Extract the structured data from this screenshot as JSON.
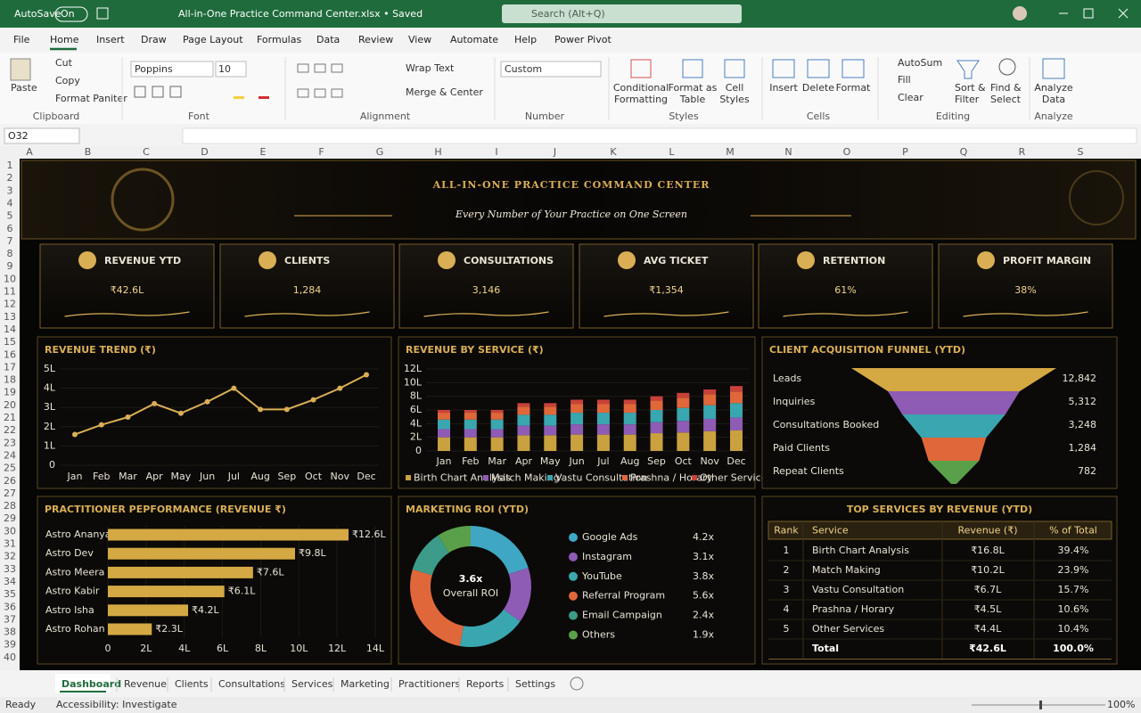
{
  "window": {
    "autosave": "AutoSave",
    "toggle": "On",
    "filename": "All-in-One Practice Command Center.xlsx • Saved",
    "search": "Search (Alt+Q)"
  },
  "menu": [
    "File",
    "Home",
    "Insert",
    "Draw",
    "Page Layout",
    "Formulas",
    "Data",
    "Review",
    "View",
    "Automate",
    "Help",
    "Power Pivot"
  ],
  "ribbon": {
    "clipboard": {
      "paste": "Paste",
      "cut": "Cut",
      "copy": "Copy",
      "painter": "Format Paniter",
      "label": "Clipboard"
    },
    "font": {
      "name": "Poppins",
      "size": "10",
      "label": "Font"
    },
    "alignment": {
      "wrap": "Wrap Text",
      "merge": "Merge & Center",
      "label": "Alignment"
    },
    "number": {
      "format": "Custom",
      "label": "Number"
    },
    "styles": {
      "conditional": [
        "Conditional",
        "Formatting"
      ],
      "table": [
        "Format as",
        "Table"
      ],
      "cell": [
        "Cell",
        "Styles"
      ],
      "label": "Styles"
    },
    "cells": {
      "insert": "Insert",
      "delete": "Delete",
      "format": "Format",
      "label": "Cells"
    },
    "editing": {
      "autosum": "AutoSum",
      "fill": "Fill",
      "clear": "Clear",
      "sort": [
        "Sort &",
        "Filter"
      ],
      "find": [
        "Find &",
        "Select"
      ],
      "label": "Editing"
    },
    "analyze": {
      "data": [
        "Analyze",
        "Data"
      ],
      "label": "Analyze"
    }
  },
  "name_box": "O32",
  "columns": [
    "A",
    "B",
    "C",
    "D",
    "E",
    "F",
    "G",
    "H",
    "I",
    "J",
    "K",
    "L",
    "M",
    "N",
    "O",
    "P",
    "Q",
    "R",
    "S"
  ],
  "rows": [
    "1",
    "2",
    "3",
    "4",
    "5",
    "6",
    "7",
    "8",
    "9",
    "10",
    "11",
    "12",
    "13",
    "14",
    "15",
    "16",
    "17",
    "18",
    "19",
    "20",
    "21",
    "22",
    "23",
    "24",
    "25",
    "26",
    "27",
    "28",
    "29",
    "30",
    "31",
    "32",
    "33",
    "34",
    "35",
    "36",
    "37",
    "38",
    "39",
    "40"
  ],
  "dashboard": {
    "title": "ALL-IN-ONE PRACTICE COMMAND CENTER",
    "subtitle": "Every Number of Your Practice on One Screen",
    "kpis": [
      {
        "label": "REVENUE YTD",
        "value": "₹42.6L"
      },
      {
        "label": "CLIENTS",
        "value": "1,284"
      },
      {
        "label": "CONSULTATIONS",
        "value": "3,146"
      },
      {
        "label": "AVG TICKET",
        "value": "₹1,354"
      },
      {
        "label": "RETENTION",
        "value": "61%"
      },
      {
        "label": "PROFIT MARGIN",
        "value": "38%"
      }
    ],
    "revenue_trend": {
      "type": "line",
      "title": "REVENUE TREND (₹)",
      "color": "#d9ae55",
      "categories": [
        "Jan",
        "Feb",
        "Mar",
        "Apr",
        "May",
        "Jun",
        "Jul",
        "Aug",
        "Sep",
        "Oct",
        "Nov",
        "Dec"
      ],
      "values": [
        1.6,
        2.1,
        2.5,
        3.2,
        2.7,
        3.3,
        4.0,
        2.9,
        2.9,
        3.4,
        4.0,
        4.7
      ],
      "ylim": [
        0,
        5.2
      ],
      "yticks": [
        0,
        {
          "value": 1,
          "label": "1L"
        },
        {
          "value": 2,
          "label": "2L"
        },
        {
          "value": 3,
          "label": "3L"
        },
        {
          "value": 4,
          "label": "4L"
        },
        {
          "value": 5,
          "label": "5L"
        }
      ]
    },
    "revenue_by_service": {
      "type": "stacked_bar",
      "title": "REVENUE BY SERVICE (₹)",
      "categories": [
        "Jan",
        "Feb",
        "Mar",
        "Apr",
        "May",
        "Jun",
        "Jul",
        "Aug",
        "Sep",
        "Oct",
        "Nov",
        "Dec"
      ],
      "series": [
        {
          "name": "Birth Chart Analysis",
          "color": "#c9a13f",
          "values": [
            2.0,
            2.0,
            2.0,
            2.3,
            2.3,
            2.4,
            2.4,
            2.4,
            2.6,
            2.7,
            2.9,
            3.0
          ]
        },
        {
          "name": "Match Making",
          "color": "#8e5bb5",
          "values": [
            1.2,
            1.2,
            1.2,
            1.4,
            1.4,
            1.5,
            1.5,
            1.5,
            1.6,
            1.7,
            1.8,
            1.9
          ]
        },
        {
          "name": "Vastu Consultation",
          "color": "#3aa6b0",
          "values": [
            1.4,
            1.4,
            1.4,
            1.6,
            1.6,
            1.7,
            1.7,
            1.7,
            1.8,
            1.9,
            2.0,
            2.1
          ]
        },
        {
          "name": "Prashna / Horary",
          "color": "#e0673a",
          "values": [
            1.0,
            1.0,
            1.0,
            1.2,
            1.2,
            1.3,
            1.3,
            1.3,
            1.4,
            1.5,
            1.6,
            1.7
          ]
        },
        {
          "name": "Other Services",
          "color": "#c8423a",
          "values": [
            0.4,
            0.4,
            0.4,
            0.5,
            0.5,
            0.6,
            0.6,
            0.6,
            0.6,
            0.7,
            0.7,
            0.8
          ]
        }
      ],
      "ylim": [
        0,
        12
      ],
      "yticks": [
        0,
        {
          "value": 2,
          "label": "2L"
        },
        {
          "value": 4,
          "label": "4L"
        },
        {
          "value": 6,
          "label": "6L"
        },
        {
          "value": 8,
          "label": "8L"
        },
        {
          "value": 10,
          "label": "10L"
        },
        {
          "value": 12,
          "label": "12L"
        }
      ]
    },
    "funnel": {
      "type": "funnel",
      "title": "CLIENT ACQUISITION FUNNEL (YTD)",
      "categories": [
        "Leads",
        "Inquiries",
        "Consultations Booked",
        "Paid Clients",
        "Repeat Clients"
      ],
      "values": [
        12842,
        5312,
        3248,
        1284,
        782
      ],
      "value_labels": [
        "12,842",
        "5,312",
        "3,248",
        "1,284",
        "782"
      ],
      "colors": [
        "#d4a843",
        "#8e5bb5",
        "#3aa6b0",
        "#e0673a",
        "#5aa04a"
      ]
    },
    "practitioners": {
      "type": "hbar",
      "title": "PRACTITIONER PEPFORMANCE (REVENUE ₹)",
      "color": "#d4a843",
      "categories": [
        "Astro Ananya",
        "Astro Dev",
        "Astro Meera",
        "Astro Kabir",
        "Astro Isha",
        "Astro Rohan"
      ],
      "values": [
        12.6,
        9.8,
        7.6,
        6.1,
        4.2,
        2.3
      ],
      "value_labels": [
        "₹12.6L",
        "₹9.8L",
        "₹7.6L",
        "₹6.1L",
        "₹4.2L",
        "₹2.3L"
      ],
      "xlim": [
        0,
        14
      ],
      "xticks": [
        0,
        {
          "value": 2,
          "label": "2L"
        },
        {
          "value": 4,
          "label": "4L"
        },
        {
          "value": 6,
          "label": "6L"
        },
        {
          "value": 8,
          "label": "8L"
        },
        {
          "value": 10,
          "label": "10L"
        },
        {
          "value": 12,
          "label": "12L"
        },
        {
          "value": 14,
          "label": "14L"
        }
      ]
    },
    "marketing": {
      "type": "donut",
      "title": "MARKETING ROI (YTD)",
      "center_value": "3.6x",
      "center_label": "Overall ROI",
      "categories": [
        "Google Ads",
        "Instagram",
        "YouTube",
        "Referral Program",
        "Email Campaign",
        "Others"
      ],
      "values": [
        4.2,
        3.1,
        3.8,
        5.6,
        2.4,
        1.9
      ],
      "value_labels": [
        "4.2x",
        "3.1x",
        "3.8x",
        "5.6x",
        "2.4x",
        "1.9x"
      ],
      "colors": [
        "#3fa7c4",
        "#8e5bb5",
        "#3aa6b0",
        "#e0673a",
        "#3d9b8a",
        "#5aa04a"
      ]
    },
    "top_services": {
      "title": "TOP SERVICES BY REVENUE (YTD)",
      "header": [
        "Rank",
        "Service",
        "Revenue (₹)",
        "% of Total"
      ],
      "rows": [
        [
          "1",
          "Birth Chart Analysis",
          "₹16.8L",
          "39.4%"
        ],
        [
          "2",
          "Match Making",
          "₹10.2L",
          "23.9%"
        ],
        [
          "3",
          "Vastu Consultation",
          "₹6.7L",
          "15.7%"
        ],
        [
          "4",
          "Prashna / Horary",
          "₹4.5L",
          "10.6%"
        ],
        [
          "5",
          "Other Services",
          "₹4.4L",
          "10.4%"
        ]
      ],
      "total": {
        "label": "Total",
        "revenue": "₹42.6L",
        "share": "100.0%"
      }
    }
  },
  "sheet_tabs": [
    "Dashboard",
    "Revenue",
    "Clients",
    "Consultations",
    "Services",
    "Marketing",
    "Practitioners",
    "Reports",
    "Settings"
  ],
  "status": {
    "ready": "Ready",
    "accessibility": "Accessibility: Investigate",
    "zoom": "100%"
  }
}
